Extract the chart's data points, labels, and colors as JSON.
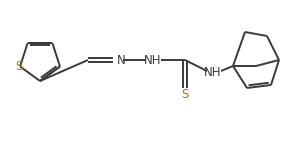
{
  "line_color": "#3a3a3a",
  "bg_color": "#ffffff",
  "S_color": "#cc6600",
  "label_S1": "S",
  "label_S2": "S",
  "label_N": "N",
  "label_NH1": "NH",
  "label_NH2": "NH",
  "figsize": [
    3.0,
    1.48
  ],
  "dpi": 100,
  "lw": 1.4,
  "fontsize": 8.5
}
